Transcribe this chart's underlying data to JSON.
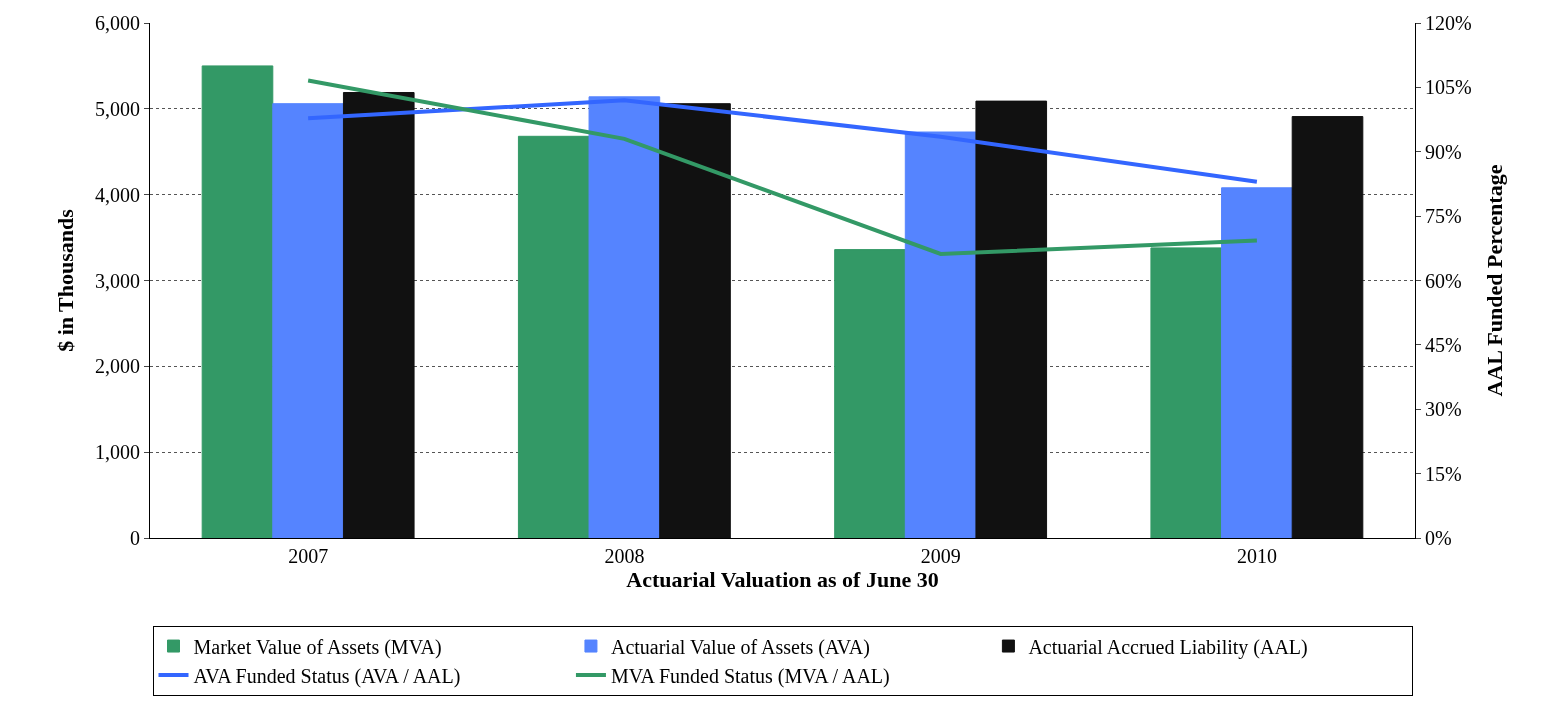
{
  "chart_data": {
    "type": "bar",
    "xlabel": "Actuarial Valuation as of June 30",
    "ylabel": "$ in Thousands",
    "y2label": "AAL Funded Percentage",
    "categories": [
      "2007",
      "2008",
      "2009",
      "2010"
    ],
    "series": [
      {
        "name": "Market Value of Assets (MVA)",
        "color": "#339966",
        "values": [
          5500,
          4680,
          3360,
          3380
        ]
      },
      {
        "name": "Actuarial Value of Assets (AVA)",
        "color": "#5584ff",
        "values": [
          5060,
          5140,
          4730,
          4080
        ]
      },
      {
        "name": "Actuarial Accrued Liability (AAL)",
        "color": "#111111",
        "values": [
          5190,
          5060,
          5090,
          4910
        ]
      },
      {
        "name": "AVA Funded Status (AVA / AAL)",
        "color": "#3366ff",
        "type": "line",
        "axis": "y2",
        "values": [
          97.8,
          102.0,
          93.5,
          83.0
        ]
      },
      {
        "name": "MVA Funded Status (MVA / AAL)",
        "color": "#339966",
        "type": "line",
        "axis": "y2",
        "values": [
          106.6,
          93.0,
          66.2,
          69.3
        ]
      }
    ],
    "ylim": [
      0,
      6000
    ],
    "yticks": [
      {
        "value": 0,
        "label": "0"
      },
      {
        "value": 1000,
        "label": "1,000"
      },
      {
        "value": 2000,
        "label": "2,000"
      },
      {
        "value": 3000,
        "label": "3,000"
      },
      {
        "value": 4000,
        "label": "4,000"
      },
      {
        "value": 5000,
        "label": "5,000"
      },
      {
        "value": 6000,
        "label": "6,000"
      }
    ],
    "y2lim": [
      0,
      120
    ],
    "y2ticks": [
      {
        "value": 0,
        "label": "0%"
      },
      {
        "value": 15,
        "label": "15%"
      },
      {
        "value": 30,
        "label": "30%"
      },
      {
        "value": 45,
        "label": "45%"
      },
      {
        "value": 60,
        "label": "60%"
      },
      {
        "value": 75,
        "label": "75%"
      },
      {
        "value": 90,
        "label": "90%"
      },
      {
        "value": 105,
        "label": "105%"
      },
      {
        "value": 120,
        "label": "120%"
      }
    ],
    "grid": "y",
    "legend": "bottom",
    "marker": "none",
    "line_style": "solid"
  }
}
